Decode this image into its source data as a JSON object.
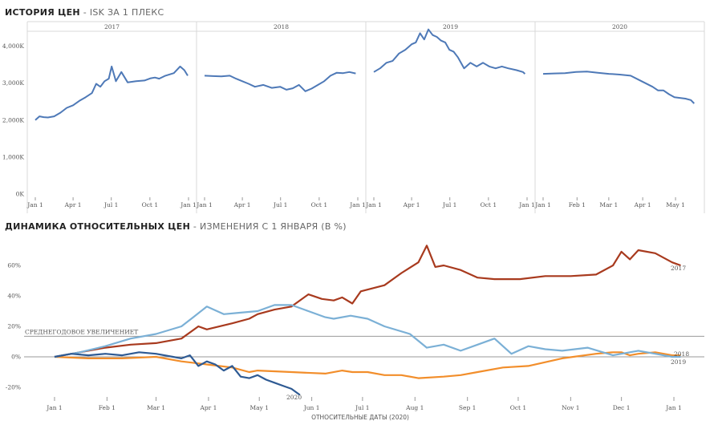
{
  "top_title": "ИСТОРИЯ ЦЕН",
  "top_subtitle": "ISK ЗА 1 ПЛЕКС",
  "bottom_title": "ДИНАМИКА ОТНОСИТЕЛЬНЫХ ЦЕН",
  "bottom_subtitle": "ИЗМЕНЕНИЯ С 1 ЯНВАРЯ (В %)",
  "chart_data": [
    {
      "type": "line",
      "title": "ИСТОРИЯ ЦЕН - ISK ЗА 1 ПЛЕКС",
      "ylim": [
        0,
        4800
      ],
      "y_ticks": [
        "0K",
        "1,000K",
        "2,000K",
        "3,000K",
        "4,000K"
      ],
      "y_tick_values": [
        0,
        1000,
        2000,
        3000,
        4000
      ],
      "color": "#4e79b7",
      "panels": [
        {
          "name": "2017",
          "x_ticks": [
            "Jan 1",
            "Apr 1",
            "Jul 1",
            "Oct 1",
            "Jan 1"
          ],
          "x_tick_days": [
            0,
            90,
            181,
            273,
            365
          ],
          "x_range": [
            0,
            365
          ],
          "days": [
            0,
            10,
            20,
            30,
            45,
            60,
            75,
            90,
            105,
            120,
            135,
            145,
            155,
            165,
            175,
            182,
            192,
            205,
            220,
            240,
            260,
            275,
            285,
            295,
            310,
            330,
            345,
            355,
            363
          ],
          "values": [
            2000,
            2100,
            2080,
            2070,
            2100,
            2200,
            2330,
            2400,
            2520,
            2620,
            2730,
            2980,
            2900,
            3050,
            3120,
            3450,
            3050,
            3300,
            3020,
            3050,
            3070,
            3130,
            3150,
            3120,
            3200,
            3270,
            3450,
            3350,
            3200
          ]
        },
        {
          "name": "2018",
          "x_ticks": [
            "Jan 1",
            "Apr 1",
            "Jul 1",
            "Oct 1",
            "Jan 1"
          ],
          "x_tick_days": [
            0,
            90,
            181,
            273,
            365
          ],
          "x_range": [
            0,
            365
          ],
          "days": [
            0,
            20,
            40,
            60,
            75,
            90,
            105,
            120,
            140,
            160,
            180,
            195,
            210,
            225,
            240,
            255,
            270,
            285,
            300,
            315,
            330,
            345,
            360
          ],
          "values": [
            3200,
            3190,
            3180,
            3200,
            3120,
            3050,
            2980,
            2900,
            2950,
            2870,
            2900,
            2820,
            2860,
            2950,
            2780,
            2850,
            2950,
            3050,
            3200,
            3280,
            3270,
            3300,
            3260
          ]
        },
        {
          "name": "2019",
          "x_ticks": [
            "Jan 1",
            "Apr 1",
            "Jul 1",
            "Oct 1",
            "Jan 1"
          ],
          "x_tick_days": [
            0,
            90,
            181,
            273,
            365
          ],
          "x_range": [
            0,
            365
          ],
          "days": [
            0,
            15,
            30,
            45,
            60,
            75,
            90,
            100,
            110,
            120,
            130,
            140,
            150,
            160,
            170,
            180,
            190,
            200,
            215,
            230,
            245,
            260,
            275,
            290,
            305,
            320,
            340,
            355,
            360
          ],
          "values": [
            3300,
            3400,
            3550,
            3600,
            3800,
            3900,
            4050,
            4100,
            4350,
            4180,
            4450,
            4300,
            4250,
            4150,
            4100,
            3900,
            3850,
            3700,
            3400,
            3550,
            3450,
            3550,
            3450,
            3400,
            3450,
            3400,
            3350,
            3300,
            3250
          ]
        },
        {
          "name": "2020",
          "x_ticks": [
            "Jan 1",
            "Feb 1",
            "Mar 1",
            "Apr 1",
            "May 1"
          ],
          "x_tick_days": [
            0,
            31,
            60,
            91,
            121
          ],
          "x_range": [
            0,
            140
          ],
          "days": [
            0,
            10,
            20,
            30,
            40,
            50,
            60,
            70,
            80,
            90,
            100,
            105,
            110,
            115,
            120,
            125,
            130,
            135,
            138
          ],
          "values": [
            3250,
            3260,
            3270,
            3300,
            3310,
            3280,
            3250,
            3230,
            3200,
            3050,
            2900,
            2800,
            2800,
            2700,
            2620,
            2600,
            2580,
            2540,
            2450
          ]
        }
      ]
    },
    {
      "type": "line",
      "title": "ДИНАМИКА ОТНОСИТЕЛЬНЫХ ЦЕН - ИЗМЕНЕНИЯ С 1 ЯНВАРЯ (В %)",
      "xlabel": "ОТНОСИТЕЛЬНЫЕ ДАТЫ (2020)",
      "ylim": [
        -27,
        78
      ],
      "y_ticks": [
        "-20%",
        "0%",
        "20%",
        "40%",
        "60%"
      ],
      "y_tick_values": [
        -20,
        0,
        20,
        40,
        60
      ],
      "x_ticks": [
        "Jan 1",
        "Feb 1",
        "Mar 1",
        "Apr 1",
        "May 1",
        "Jun 1",
        "Jul 1",
        "Aug 1",
        "Sep 1",
        "Oct 1",
        "Nov 1",
        "Dec 1",
        "Jan 1"
      ],
      "x_tick_days": [
        0,
        31,
        60,
        91,
        121,
        152,
        182,
        213,
        244,
        274,
        305,
        335,
        366
      ],
      "x_range": [
        -18,
        384
      ],
      "reference_line": {
        "label": "СРЕДНЕГОДОВОЕ УВЕЛИЧЕНИЕТ",
        "value": 13.5
      },
      "series": [
        {
          "name": "2017",
          "color": "#a83a1e",
          "days": [
            0,
            15,
            30,
            45,
            60,
            75,
            85,
            90,
            105,
            115,
            120,
            130,
            140,
            150,
            158,
            165,
            170,
            176,
            181,
            195,
            205,
            215,
            220,
            225,
            230,
            240,
            250,
            260,
            275,
            290,
            305,
            320,
            330,
            335,
            340,
            345,
            355,
            365,
            370
          ],
          "values": [
            0,
            3,
            6,
            8,
            9,
            12,
            20,
            18,
            22,
            25,
            28,
            31,
            33,
            41,
            38,
            37,
            39,
            35,
            43,
            47,
            55,
            62,
            73,
            59,
            60,
            57,
            52,
            51,
            51,
            53,
            53,
            54,
            60,
            69,
            64,
            70,
            68,
            62,
            60
          ]
        },
        {
          "name": "2018",
          "color": "#f28e2b",
          "days": [
            0,
            20,
            40,
            60,
            75,
            90,
            105,
            115,
            120,
            140,
            160,
            170,
            176,
            185,
            195,
            205,
            215,
            230,
            240,
            250,
            265,
            280,
            300,
            320,
            330,
            335,
            340,
            345,
            355,
            365,
            370
          ],
          "values": [
            0,
            -1,
            -1,
            0,
            -3,
            -5,
            -7,
            -10,
            -9,
            -10,
            -11,
            -9,
            -10,
            -10,
            -12,
            -12,
            -14,
            -13,
            -12,
            -10,
            -7,
            -6,
            -1,
            2,
            3,
            3,
            1,
            2,
            3,
            1,
            1
          ]
        },
        {
          "name": "2019",
          "color": "#7bb0d6",
          "days": [
            0,
            15,
            30,
            45,
            60,
            75,
            82,
            90,
            100,
            110,
            120,
            130,
            140,
            150,
            160,
            165,
            175,
            185,
            195,
            210,
            220,
            230,
            240,
            250,
            260,
            270,
            280,
            290,
            300,
            315,
            330,
            345,
            355,
            365,
            370
          ],
          "values": [
            0,
            3,
            7,
            12,
            15,
            20,
            26,
            33,
            28,
            29,
            30,
            34,
            34,
            30,
            26,
            25,
            27,
            25,
            20,
            15,
            6,
            8,
            4,
            8,
            12,
            2,
            7,
            5,
            4,
            6,
            1,
            4,
            2,
            0,
            0
          ]
        },
        {
          "name": "2020",
          "color": "#2e5a93",
          "days": [
            0,
            10,
            20,
            30,
            40,
            50,
            60,
            70,
            75,
            80,
            85,
            90,
            95,
            100,
            105,
            110,
            115,
            120,
            125,
            130,
            135,
            140,
            145
          ],
          "values": [
            0,
            2,
            1,
            2,
            1,
            3,
            2,
            0,
            -1,
            1,
            -6,
            -3,
            -5,
            -9,
            -6,
            -13,
            -14,
            -12,
            -15,
            -17,
            -19,
            -21,
            -25
          ]
        }
      ],
      "end_labels": [
        "2017",
        "2018",
        "2019",
        "2020"
      ]
    }
  ]
}
